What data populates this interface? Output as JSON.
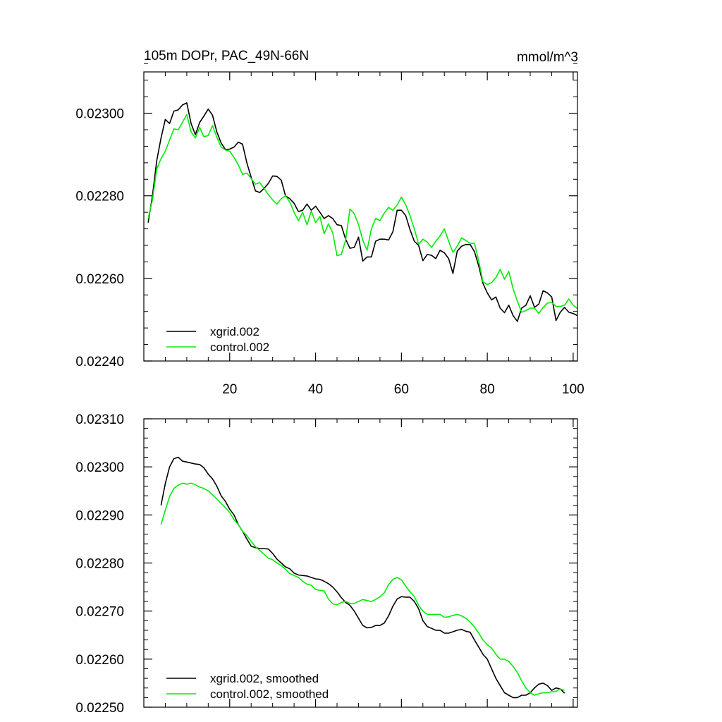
{
  "colors": {
    "xgrid": "#000000",
    "control": "#00ee00",
    "axis": "#000000",
    "background": "#ffffff"
  },
  "chart_data": [
    {
      "type": "line",
      "title": "105m DOPr, PAC_49N-66N",
      "units": "mmol/m^3",
      "xlim": [
        0,
        101
      ],
      "ylim": [
        0.0224,
        0.0231
      ],
      "xticks": [
        20,
        40,
        60,
        80,
        100
      ],
      "xtick_labels": [
        "20",
        "40",
        "60",
        "80",
        "100"
      ],
      "yticks": [
        0.0224,
        0.0226,
        0.0228,
        0.023
      ],
      "ytick_labels": [
        "0.02240",
        "0.02260",
        "0.02280",
        "0.02300"
      ],
      "legend_position": "bottom-left",
      "series": [
        {
          "name": "xgrid.002",
          "color_key": "xgrid",
          "x": [
            1,
            2,
            3,
            4,
            5,
            6,
            7,
            8,
            9,
            10,
            11,
            12,
            13,
            14,
            15,
            16,
            17,
            18,
            19,
            20,
            21,
            22,
            23,
            24,
            25,
            26,
            27,
            28,
            29,
            30,
            31,
            32,
            33,
            34,
            35,
            36,
            37,
            38,
            39,
            40,
            41,
            42,
            43,
            44,
            45,
            46,
            47,
            48,
            49,
            50,
            51,
            52,
            53,
            54,
            55,
            56,
            57,
            58,
            59,
            60,
            61,
            62,
            63,
            64,
            65,
            66,
            67,
            68,
            69,
            70,
            71,
            72,
            73,
            74,
            75,
            76,
            77,
            78,
            79,
            80,
            81,
            82,
            83,
            84,
            85,
            86,
            87,
            88,
            89,
            90,
            91,
            92,
            93,
            94,
            95,
            96,
            97,
            98,
            99,
            100,
            101
          ],
          "values": [
            0.022735,
            0.0228,
            0.022885,
            0.02294,
            0.022985,
            0.022975,
            0.023005,
            0.023008,
            0.02302,
            0.023025,
            0.022975,
            0.022948,
            0.022978,
            0.022993,
            0.02301,
            0.022995,
            0.022955,
            0.022928,
            0.022912,
            0.022913,
            0.022918,
            0.02293,
            0.022925,
            0.02288,
            0.022845,
            0.022812,
            0.022808,
            0.022818,
            0.02283,
            0.022848,
            0.022847,
            0.022838,
            0.0228,
            0.022793,
            0.022782,
            0.022762,
            0.022765,
            0.02278,
            0.022765,
            0.022775,
            0.02276,
            0.022745,
            0.022752,
            0.022745,
            0.02273,
            0.022728,
            0.022695,
            0.022673,
            0.022675,
            0.0227,
            0.022642,
            0.022652,
            0.022652,
            0.02269,
            0.022695,
            0.022695,
            0.022693,
            0.022713,
            0.022765,
            0.022765,
            0.022752,
            0.022718,
            0.02269,
            0.02268,
            0.022643,
            0.022658,
            0.022656,
            0.022648,
            0.022668,
            0.022662,
            0.022648,
            0.022612,
            0.022666,
            0.022678,
            0.022682,
            0.022682,
            0.022665,
            0.02263,
            0.022588,
            0.022565,
            0.022548,
            0.022555,
            0.022528,
            0.022517,
            0.022535,
            0.02251,
            0.022496,
            0.022528,
            0.022535,
            0.022558,
            0.02253,
            0.022538,
            0.02257,
            0.022565,
            0.022555,
            0.022498,
            0.022518,
            0.02253,
            0.022518,
            0.022515,
            0.02251
          ]
        },
        {
          "name": "control.002",
          "color_key": "control",
          "x": [
            1,
            2,
            3,
            4,
            5,
            6,
            7,
            8,
            9,
            10,
            11,
            12,
            13,
            14,
            15,
            16,
            17,
            18,
            19,
            20,
            21,
            22,
            23,
            24,
            25,
            26,
            27,
            28,
            29,
            30,
            31,
            32,
            33,
            34,
            35,
            36,
            37,
            38,
            39,
            40,
            41,
            42,
            43,
            44,
            45,
            46,
            47,
            48,
            49,
            50,
            51,
            52,
            53,
            54,
            55,
            56,
            57,
            58,
            59,
            60,
            61,
            62,
            63,
            64,
            65,
            66,
            67,
            68,
            69,
            70,
            71,
            72,
            73,
            74,
            75,
            76,
            77,
            78,
            79,
            80,
            81,
            82,
            83,
            84,
            85,
            86,
            87,
            88,
            89,
            90,
            91,
            92,
            93,
            94,
            95,
            96,
            97,
            98,
            99,
            100,
            101
          ],
          "values": [
            0.022745,
            0.02279,
            0.022865,
            0.02289,
            0.022908,
            0.022935,
            0.022962,
            0.02296,
            0.022978,
            0.022997,
            0.022955,
            0.02294,
            0.022966,
            0.022943,
            0.022946,
            0.02297,
            0.022942,
            0.022918,
            0.022911,
            0.022908,
            0.022893,
            0.022875,
            0.022852,
            0.022855,
            0.022842,
            0.022828,
            0.022832,
            0.022818,
            0.022803,
            0.02279,
            0.02278,
            0.022793,
            0.0228,
            0.022785,
            0.02276,
            0.02274,
            0.02276,
            0.02273,
            0.022763,
            0.022735,
            0.02275,
            0.022708,
            0.022732,
            0.02271,
            0.022655,
            0.022658,
            0.022693,
            0.022768,
            0.022757,
            0.02273,
            0.022693,
            0.022668,
            0.02272,
            0.022745,
            0.02274,
            0.022758,
            0.022772,
            0.022765,
            0.022778,
            0.022797,
            0.022778,
            0.022752,
            0.02272,
            0.022683,
            0.022695,
            0.022688,
            0.022675,
            0.02269,
            0.022703,
            0.02272,
            0.02269,
            0.022663,
            0.022678,
            0.022698,
            0.022692,
            0.022685,
            0.022685,
            0.022642,
            0.022592,
            0.022585,
            0.02259,
            0.022602,
            0.022622,
            0.022598,
            0.022617,
            0.022575,
            0.022545,
            0.022518,
            0.022522,
            0.022528,
            0.022528,
            0.022515,
            0.02253,
            0.02254,
            0.022542,
            0.022532,
            0.022532,
            0.022535,
            0.02255,
            0.022535,
            0.022527
          ]
        }
      ]
    },
    {
      "type": "line",
      "title": "",
      "xlim": [
        0,
        101
      ],
      "ylim": [
        0.0225,
        0.0231
      ],
      "xticks": [
        20,
        40,
        60,
        80,
        100
      ],
      "xtick_labels": [],
      "yticks": [
        0.0225,
        0.0226,
        0.0227,
        0.0228,
        0.0229,
        0.023,
        0.0231
      ],
      "ytick_labels": [
        "0.02250",
        "0.02260",
        "0.02270",
        "0.02280",
        "0.02290",
        "0.02300",
        "0.02310"
      ],
      "legend_position": "bottom-left",
      "series": [
        {
          "name": "xgrid.002, smoothed",
          "color_key": "xgrid",
          "x": [
            4,
            5,
            6,
            7,
            8,
            9,
            10,
            11,
            12,
            13,
            14,
            15,
            16,
            17,
            18,
            19,
            20,
            21,
            22,
            23,
            24,
            25,
            26,
            27,
            28,
            29,
            30,
            31,
            32,
            33,
            34,
            35,
            36,
            37,
            38,
            39,
            40,
            41,
            42,
            43,
            44,
            45,
            46,
            47,
            48,
            49,
            50,
            51,
            52,
            53,
            54,
            55,
            56,
            57,
            58,
            59,
            60,
            61,
            62,
            63,
            64,
            65,
            66,
            67,
            68,
            69,
            70,
            71,
            72,
            73,
            74,
            75,
            76,
            77,
            78,
            79,
            80,
            81,
            82,
            83,
            84,
            85,
            86,
            87,
            88,
            89,
            90,
            91,
            92,
            93,
            94,
            95,
            96,
            97,
            98
          ],
          "values": [
            0.02292,
            0.022965,
            0.023,
            0.023017,
            0.02302,
            0.023012,
            0.02301,
            0.023008,
            0.023006,
            0.023005,
            0.022998,
            0.022985,
            0.022975,
            0.02296,
            0.02294,
            0.022928,
            0.022912,
            0.0229,
            0.02288,
            0.022866,
            0.02285,
            0.022835,
            0.022832,
            0.02283,
            0.02283,
            0.022829,
            0.02282,
            0.022808,
            0.0228,
            0.022792,
            0.022788,
            0.022779,
            0.022775,
            0.022774,
            0.022773,
            0.02277,
            0.022767,
            0.022766,
            0.022762,
            0.022757,
            0.02275,
            0.02274,
            0.022728,
            0.022718,
            0.022712,
            0.0227,
            0.022685,
            0.02267,
            0.022665,
            0.022666,
            0.02267,
            0.02267,
            0.022675,
            0.02269,
            0.02271,
            0.022725,
            0.02273,
            0.022729,
            0.022729,
            0.02272,
            0.022705,
            0.02268,
            0.022668,
            0.022664,
            0.02266,
            0.02266,
            0.022654,
            0.022654,
            0.022657,
            0.02266,
            0.022662,
            0.022658,
            0.022656,
            0.02264,
            0.022625,
            0.02261,
            0.0226,
            0.02258,
            0.02256,
            0.022545,
            0.02253,
            0.022525,
            0.02252,
            0.02252,
            0.022525,
            0.022525,
            0.02253,
            0.02254,
            0.022548,
            0.02255,
            0.022545,
            0.022535,
            0.02254,
            0.022538,
            0.022529
          ]
        },
        {
          "name": "control.002, smoothed",
          "color_key": "control",
          "x": [
            4,
            5,
            6,
            7,
            8,
            9,
            10,
            11,
            12,
            13,
            14,
            15,
            16,
            17,
            18,
            19,
            20,
            21,
            22,
            23,
            24,
            25,
            26,
            27,
            28,
            29,
            30,
            31,
            32,
            33,
            34,
            35,
            36,
            37,
            38,
            39,
            40,
            41,
            42,
            43,
            44,
            45,
            46,
            47,
            48,
            49,
            50,
            51,
            52,
            53,
            54,
            55,
            56,
            57,
            58,
            59,
            60,
            61,
            62,
            63,
            64,
            65,
            66,
            67,
            68,
            69,
            70,
            71,
            72,
            73,
            74,
            75,
            76,
            77,
            78,
            79,
            80,
            81,
            82,
            83,
            84,
            85,
            86,
            87,
            88,
            89,
            90,
            91,
            92,
            93,
            94,
            95,
            96,
            97,
            98
          ],
          "values": [
            0.02288,
            0.02291,
            0.022938,
            0.022955,
            0.022962,
            0.022966,
            0.022964,
            0.022966,
            0.022963,
            0.022958,
            0.022955,
            0.02295,
            0.022942,
            0.022933,
            0.022924,
            0.022915,
            0.022905,
            0.02289,
            0.02288,
            0.022866,
            0.022857,
            0.022845,
            0.022834,
            0.022826,
            0.022818,
            0.02281,
            0.022807,
            0.0228,
            0.022795,
            0.022787,
            0.022778,
            0.022774,
            0.02277,
            0.022762,
            0.022756,
            0.022754,
            0.022745,
            0.022743,
            0.022742,
            0.022725,
            0.022715,
            0.022713,
            0.022718,
            0.02272,
            0.022716,
            0.022716,
            0.02272,
            0.022724,
            0.022722,
            0.02272,
            0.022724,
            0.02273,
            0.022738,
            0.022755,
            0.022766,
            0.02277,
            0.022765,
            0.022752,
            0.02274,
            0.02273,
            0.022712,
            0.0227,
            0.022693,
            0.022693,
            0.022693,
            0.022693,
            0.022687,
            0.022688,
            0.022691,
            0.022693,
            0.02269,
            0.022685,
            0.022677,
            0.022667,
            0.022654,
            0.02264,
            0.02263,
            0.022623,
            0.02261,
            0.0226,
            0.0226,
            0.022595,
            0.022585,
            0.022572,
            0.022555,
            0.02254,
            0.02253,
            0.022525,
            0.022528,
            0.02253,
            0.02253,
            0.022532,
            0.022533,
            0.022538,
            0.022535
          ]
        }
      ]
    }
  ]
}
